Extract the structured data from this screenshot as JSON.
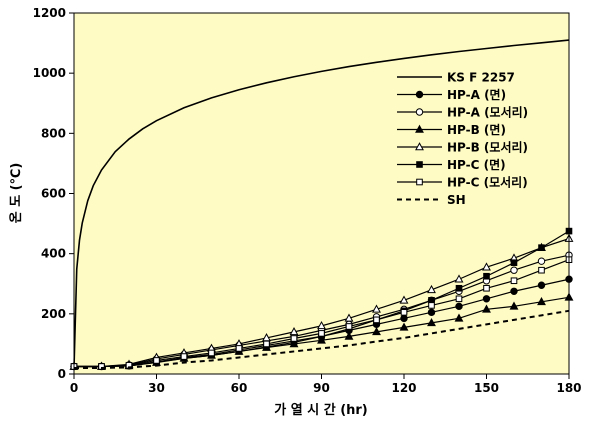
{
  "chart_data": {
    "type": "line",
    "xlabel": "가 열 시 간 (hr)",
    "ylabel": "온 도 (℃)",
    "xlim": [
      0,
      180
    ],
    "ylim": [
      0,
      1200
    ],
    "xticks": [
      0,
      30,
      60,
      90,
      120,
      150,
      180
    ],
    "yticks": [
      0,
      200,
      400,
      600,
      800,
      1000,
      1200
    ],
    "grid": false,
    "background": "#fffbc4",
    "legend_position": "right",
    "series": [
      {
        "name": "KS F 2257",
        "style": "solid",
        "marker": "none",
        "x": [
          0,
          1,
          2,
          3,
          5,
          7,
          10,
          15,
          20,
          25,
          30,
          40,
          50,
          60,
          70,
          80,
          90,
          100,
          110,
          120,
          130,
          140,
          150,
          160,
          170,
          180
        ],
        "y": [
          20,
          349,
          445,
          502,
          576,
          626,
          678,
          739,
          781,
          815,
          842,
          885,
          918,
          945,
          968,
          988,
          1006,
          1022,
          1036,
          1049,
          1061,
          1072,
          1082,
          1092,
          1101,
          1110
        ]
      },
      {
        "name": "HP-A (면)",
        "style": "solid",
        "marker": "filled-circle",
        "x": [
          0,
          10,
          20,
          30,
          40,
          50,
          60,
          70,
          80,
          90,
          100,
          110,
          120,
          130,
          140,
          150,
          160,
          170,
          180
        ],
        "y": [
          25,
          25,
          27,
          40,
          55,
          65,
          80,
          95,
          110,
          125,
          145,
          165,
          185,
          205,
          225,
          250,
          275,
          295,
          315
        ]
      },
      {
        "name": "HP-A (모서리)",
        "style": "solid",
        "marker": "open-circle",
        "x": [
          0,
          10,
          20,
          30,
          40,
          50,
          60,
          70,
          80,
          90,
          100,
          110,
          120,
          130,
          140,
          150,
          160,
          170,
          180
        ],
        "y": [
          25,
          25,
          30,
          50,
          65,
          80,
          95,
          110,
          125,
          145,
          165,
          190,
          215,
          245,
          275,
          310,
          345,
          375,
          395
        ]
      },
      {
        "name": "HP-B (면)",
        "style": "solid",
        "marker": "filled-triangle",
        "x": [
          0,
          10,
          20,
          30,
          40,
          50,
          60,
          70,
          80,
          90,
          100,
          110,
          120,
          130,
          140,
          150,
          160,
          170,
          180
        ],
        "y": [
          25,
          25,
          27,
          38,
          52,
          62,
          75,
          88,
          100,
          112,
          125,
          140,
          155,
          170,
          185,
          215,
          225,
          240,
          255
        ]
      },
      {
        "name": "HP-B (모서리)",
        "style": "solid",
        "marker": "open-triangle",
        "x": [
          0,
          10,
          20,
          30,
          40,
          50,
          60,
          70,
          80,
          90,
          100,
          110,
          120,
          130,
          140,
          150,
          160,
          170,
          180
        ],
        "y": [
          25,
          25,
          32,
          55,
          70,
          85,
          100,
          120,
          140,
          160,
          185,
          215,
          245,
          280,
          315,
          355,
          385,
          420,
          450
        ]
      },
      {
        "name": "HP-C (면)",
        "style": "solid",
        "marker": "filled-square",
        "x": [
          0,
          10,
          20,
          30,
          40,
          50,
          60,
          70,
          80,
          90,
          100,
          110,
          120,
          130,
          140,
          150,
          160,
          170,
          180
        ],
        "y": [
          25,
          25,
          27,
          40,
          52,
          62,
          75,
          90,
          105,
          125,
          150,
          180,
          210,
          245,
          285,
          325,
          370,
          420,
          475
        ]
      },
      {
        "name": "HP-C (모서리)",
        "style": "solid",
        "marker": "open-square",
        "x": [
          0,
          10,
          20,
          30,
          40,
          50,
          60,
          70,
          80,
          90,
          100,
          110,
          120,
          130,
          140,
          150,
          160,
          170,
          180
        ],
        "y": [
          25,
          25,
          29,
          45,
          58,
          70,
          85,
          100,
          118,
          135,
          158,
          180,
          205,
          228,
          250,
          285,
          310,
          345,
          380
        ]
      },
      {
        "name": "SH",
        "style": "dashed",
        "marker": "none",
        "x": [
          0,
          10,
          20,
          30,
          40,
          50,
          60,
          70,
          80,
          90,
          100,
          110,
          120,
          130,
          140,
          150,
          160,
          170,
          180
        ],
        "y": [
          20,
          20,
          22,
          28,
          38,
          45,
          55,
          65,
          75,
          85,
          95,
          108,
          120,
          135,
          150,
          165,
          180,
          195,
          210
        ]
      }
    ]
  }
}
